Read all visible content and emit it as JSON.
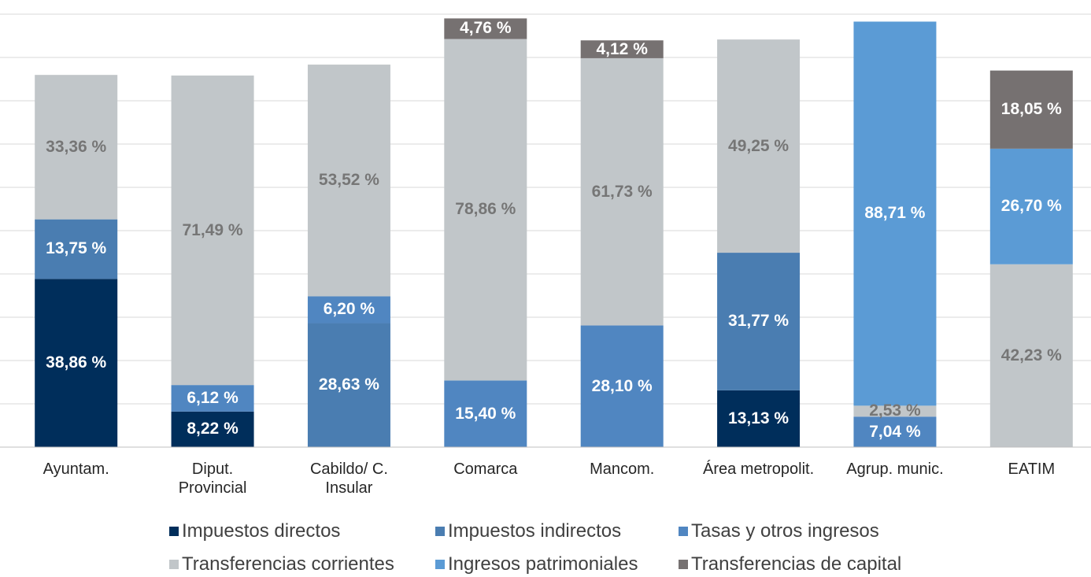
{
  "chart_data": {
    "type": "stacked_bar",
    "categories": [
      "Ayuntam.",
      "Diput.\nProvincial",
      "Cabildo/ C.\nInsular",
      "Comarca",
      "Mancom.",
      "Área metropolit.",
      "Agrup. munic.",
      "EATIM"
    ],
    "ylim": [
      0,
      100
    ],
    "yticks": [
      0,
      10,
      20,
      30,
      40,
      50,
      60,
      70,
      80,
      90,
      100
    ],
    "grid": true,
    "legend": "bottom",
    "series": [
      {
        "name": "Impuestos directos",
        "color": "#002e5b",
        "label_color": "#ffffff",
        "values": [
          38.86,
          8.22,
          null,
          null,
          null,
          13.13,
          null,
          null
        ],
        "value_labels": [
          "38,86 %",
          "8,22 %",
          null,
          null,
          null,
          "13,13 %",
          null,
          null
        ]
      },
      {
        "name": "Impuestos indirectos",
        "color": "#4a7db1",
        "label_color": "#ffffff",
        "values": [
          13.75,
          null,
          28.63,
          null,
          null,
          31.77,
          null,
          null
        ],
        "value_labels": [
          "13,75 %",
          null,
          "28,63 %",
          null,
          null,
          "31,77 %",
          null,
          null
        ]
      },
      {
        "name": "Tasas y otros ingresos",
        "color": "#5086c1",
        "label_color": "#ffffff",
        "values": [
          null,
          6.12,
          6.2,
          15.4,
          28.1,
          null,
          7.04,
          null
        ],
        "value_labels": [
          null,
          "6,12 %",
          "6,20 %",
          "15,40 %",
          "28,10 %",
          null,
          "7,04 %",
          null
        ]
      },
      {
        "name": "Transferencias corrientes",
        "color": "#c1c6c9",
        "label_color": "#767676",
        "values": [
          33.36,
          71.49,
          53.52,
          78.86,
          61.73,
          49.25,
          2.53,
          42.23
        ],
        "value_labels": [
          "33,36 %",
          "71,49 %",
          "53,52 %",
          "78,86 %",
          "61,73 %",
          "49,25 %",
          "2,53 %",
          "42,23 %"
        ]
      },
      {
        "name": "Ingresos patrimoniales",
        "color": "#5b9bd5",
        "label_color": "#ffffff",
        "values": [
          null,
          null,
          null,
          null,
          null,
          null,
          88.71,
          26.7
        ],
        "value_labels": [
          null,
          null,
          null,
          null,
          null,
          null,
          "88,71 %",
          "26,70 %"
        ]
      },
      {
        "name": "Transferencias de capital",
        "color": "#767171",
        "label_color": "#ffffff",
        "values": [
          null,
          null,
          null,
          4.76,
          4.12,
          null,
          null,
          18.05
        ],
        "value_labels": [
          null,
          null,
          null,
          "4,76 %",
          "4,12 %",
          null,
          null,
          "18,05 %"
        ]
      }
    ]
  }
}
